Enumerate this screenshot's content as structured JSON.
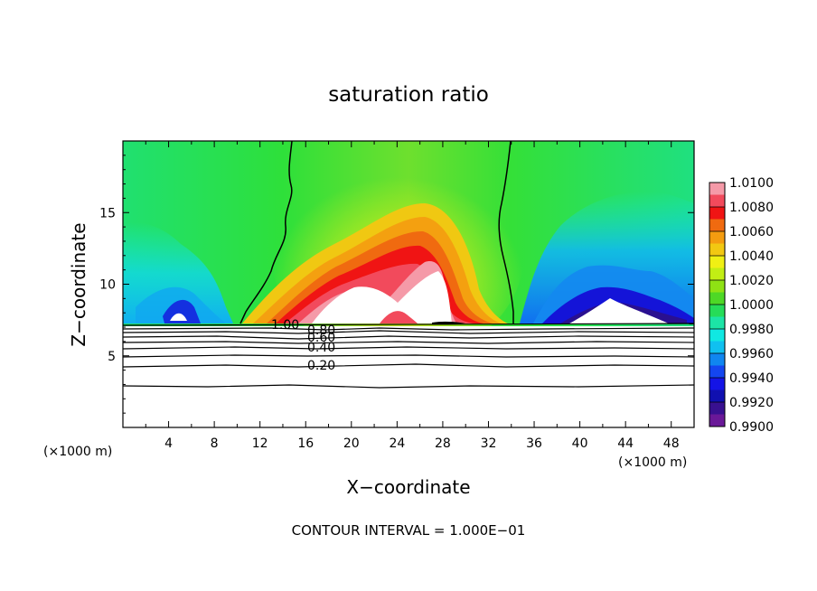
{
  "chart_data": {
    "type": "heatmap",
    "title": "saturation ratio",
    "xlabel": "X−coordinate",
    "ylabel": "Z−coordinate",
    "x_unit_left": "(×1000 m)",
    "x_unit_right": "(×1000 m)",
    "footer": "CONTOUR INTERVAL = 1.000E−01",
    "xlim": [
      0,
      50
    ],
    "ylim": [
      0,
      20
    ],
    "x_ticks": [
      4,
      8,
      12,
      16,
      20,
      24,
      28,
      32,
      36,
      40,
      44,
      48
    ],
    "y_ticks": [
      5,
      10,
      15
    ],
    "colorbar": {
      "labels": [
        "1.0100",
        "1.0080",
        "1.0060",
        "1.0040",
        "1.0020",
        "1.0000",
        "0.9980",
        "0.9960",
        "0.9940",
        "0.9920",
        "0.9900"
      ],
      "colors": [
        "#f59aa8",
        "#f24a5c",
        "#f01414",
        "#f06a10",
        "#f49c10",
        "#f2c812",
        "#f0f014",
        "#c2ee14",
        "#8fe214",
        "#4ed826",
        "#26dc58",
        "#1ce4a6",
        "#10e8e2",
        "#10c0f0",
        "#1086f0",
        "#1446f0",
        "#1414e6",
        "#1010b0",
        "#381090",
        "#6a1898"
      ]
    },
    "contour_labels": [
      "1.00",
      "0.80",
      "0.60",
      "0.40",
      "0.20"
    ],
    "contour_levels": [
      1.0,
      0.9,
      0.8,
      0.7,
      0.6,
      0.5,
      0.4,
      0.3,
      0.2,
      0.1
    ]
  }
}
